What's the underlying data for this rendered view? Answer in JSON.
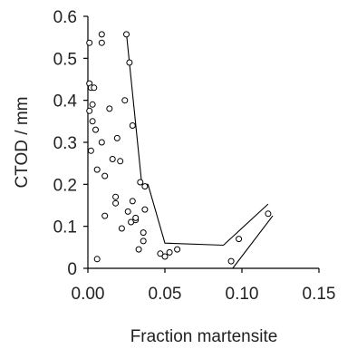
{
  "chart_data": {
    "type": "scatter",
    "xlabel": "Fraction martensite",
    "ylabel": "CTOD / mm",
    "xlim": [
      0,
      0.15
    ],
    "ylim": [
      0,
      0.6
    ],
    "x_ticks": [
      "0.00",
      "0.05",
      "0.10",
      "0.15"
    ],
    "y_ticks": [
      "0",
      "0.1",
      "0.2",
      "0.3",
      "0.4",
      "0.5",
      "0.6"
    ],
    "grid": false,
    "legend": "none",
    "series": [
      {
        "marker": "open-circle",
        "points": [
          [
            0.001,
            0.537
          ],
          [
            0.009,
            0.557
          ],
          [
            0.009,
            0.537
          ],
          [
            0.025,
            0.557
          ],
          [
            0.027,
            0.49
          ],
          [
            0.001,
            0.44
          ],
          [
            0.002,
            0.43
          ],
          [
            0.004,
            0.43
          ],
          [
            0.003,
            0.39
          ],
          [
            0.001,
            0.375
          ],
          [
            0.003,
            0.35
          ],
          [
            0.005,
            0.33
          ],
          [
            0.009,
            0.3
          ],
          [
            0.002,
            0.28
          ],
          [
            0.019,
            0.31
          ],
          [
            0.014,
            0.38
          ],
          [
            0.024,
            0.4
          ],
          [
            0.029,
            0.34
          ],
          [
            0.006,
            0.235
          ],
          [
            0.011,
            0.22
          ],
          [
            0.016,
            0.26
          ],
          [
            0.021,
            0.255
          ],
          [
            0.018,
            0.17
          ],
          [
            0.018,
            0.155
          ],
          [
            0.011,
            0.125
          ],
          [
            0.026,
            0.135
          ],
          [
            0.029,
            0.16
          ],
          [
            0.028,
            0.11
          ],
          [
            0.031,
            0.115
          ],
          [
            0.031,
            0.12
          ],
          [
            0.034,
            0.205
          ],
          [
            0.037,
            0.195
          ],
          [
            0.037,
            0.14
          ],
          [
            0.036,
            0.085
          ],
          [
            0.036,
            0.065
          ],
          [
            0.033,
            0.045
          ],
          [
            0.022,
            0.095
          ],
          [
            0.006,
            0.022
          ],
          [
            0.047,
            0.035
          ],
          [
            0.05,
            0.028
          ],
          [
            0.053,
            0.038
          ],
          [
            0.058,
            0.045
          ],
          [
            0.093,
            0.017
          ],
          [
            0.098,
            0.07
          ],
          [
            0.117,
            0.13
          ]
        ]
      }
    ],
    "bounds": [
      {
        "points": [
          [
            0.025,
            0.56
          ],
          [
            0.035,
            0.2
          ],
          [
            0.039,
            0.2
          ]
        ]
      },
      {
        "points": [
          [
            0.039,
            0.2
          ],
          [
            0.05,
            0.06
          ],
          [
            0.088,
            0.055
          ],
          [
            0.117,
            0.153
          ]
        ]
      },
      {
        "points": [
          [
            0.094,
            0.0
          ],
          [
            0.12,
            0.125
          ]
        ]
      }
    ]
  }
}
